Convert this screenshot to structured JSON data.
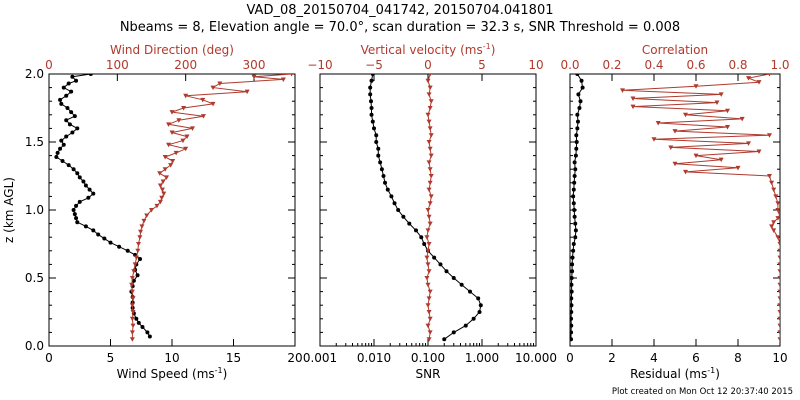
{
  "figure": {
    "title": "VAD_08_20150704_041742, 20150704.041801",
    "subtitle": "Nbeams = 8, Elevation angle = 70.0°, scan duration = 32.3 s, SNR Threshold = 0.008",
    "credit": "Plot created on Mon Oct 12 20:37:40 2015",
    "colors": {
      "black_series": "#000000",
      "red_series": "#b03a2e",
      "axis": "#000000"
    }
  },
  "chart_data": [
    {
      "type": "line",
      "panel": "left",
      "ylabel": "z (km AGL)",
      "ylim": [
        0,
        2
      ],
      "yticks": [
        0.0,
        0.5,
        1.0,
        1.5,
        2.0
      ],
      "ytick_labels": [
        "0.0",
        "0.5",
        "1.0",
        "1.5",
        "2.0"
      ],
      "bottom_axis": {
        "label": "Wind Speed (ms",
        "unit_exp": "-1",
        "label_close": ")",
        "range": [
          0,
          20
        ],
        "ticks": [
          0,
          5,
          10,
          15,
          20
        ],
        "tick_labels": [
          "0",
          "5",
          "10",
          "15",
          "20"
        ]
      },
      "top_axis": {
        "label": "Wind Direction (deg)",
        "unit_exp": "",
        "label_close": "",
        "range": [
          0,
          360
        ],
        "ticks": [
          0,
          100,
          200,
          300
        ],
        "tick_labels": [
          "0",
          "100",
          "200",
          "300"
        ]
      },
      "series": [
        {
          "axis": "bottom",
          "color": "#000000",
          "marker": "dot",
          "z": [
            0.07,
            0.1,
            0.14,
            0.17,
            0.2,
            0.24,
            0.28,
            0.32,
            0.36,
            0.4,
            0.44,
            0.48,
            0.52,
            0.56,
            0.6,
            0.64,
            0.67,
            0.7,
            0.73,
            0.76,
            0.79,
            0.82,
            0.85,
            0.88,
            0.91,
            0.94,
            0.97,
            1.0,
            1.03,
            1.06,
            1.09,
            1.12,
            1.15,
            1.18,
            1.21,
            1.24,
            1.27,
            1.3,
            1.33,
            1.36,
            1.39,
            1.42,
            1.45,
            1.48,
            1.51,
            1.54,
            1.57,
            1.6,
            1.63,
            1.66,
            1.69,
            1.72,
            1.75,
            1.78,
            1.81,
            1.84,
            1.87,
            1.9,
            1.93,
            1.95,
            1.98,
            2.0
          ],
          "values": [
            8.2,
            8.0,
            7.6,
            7.3,
            7.1,
            6.9,
            6.8,
            6.8,
            6.8,
            6.7,
            6.8,
            6.9,
            7.2,
            7.0,
            7.1,
            7.4,
            7.0,
            6.4,
            5.7,
            5.0,
            4.5,
            4.0,
            3.6,
            3.0,
            2.3,
            2.2,
            2.1,
            2.0,
            2.2,
            2.5,
            3.2,
            3.6,
            3.3,
            3.0,
            2.8,
            2.5,
            2.3,
            2.0,
            1.6,
            1.1,
            0.6,
            0.7,
            0.9,
            1.2,
            1.0,
            1.4,
            1.9,
            2.3,
            1.7,
            1.4,
            2.1,
            1.8,
            1.5,
            1.0,
            0.9,
            1.4,
            1.8,
            1.2,
            1.6,
            2.2,
            1.9,
            3.4
          ]
        },
        {
          "axis": "top",
          "color": "#b03a2e",
          "marker": "triangle",
          "z": [
            0.05,
            0.1,
            0.15,
            0.2,
            0.25,
            0.3,
            0.35,
            0.4,
            0.45,
            0.5,
            0.55,
            0.6,
            0.65,
            0.7,
            0.75,
            0.8,
            0.84,
            0.88,
            0.92,
            0.96,
            1.0,
            1.03,
            1.06,
            1.09,
            1.12,
            1.15,
            1.18,
            1.21,
            1.24,
            1.27,
            1.3,
            1.33,
            1.36,
            1.39,
            1.42,
            1.45,
            1.48,
            1.51,
            1.54,
            1.57,
            1.6,
            1.63,
            1.66,
            1.69,
            1.72,
            1.75,
            1.78,
            1.81,
            1.84,
            1.87,
            1.9,
            1.93,
            1.96,
            1.98,
            2.0
          ],
          "values": [
            122,
            122,
            123,
            122,
            123,
            122,
            123,
            122,
            121,
            122,
            124,
            126,
            128,
            130,
            131,
            133,
            134,
            136,
            139,
            143,
            150,
            158,
            163,
            165,
            168,
            166,
            163,
            167,
            172,
            162,
            170,
            178,
            181,
            170,
            186,
            200,
            175,
            196,
            202,
            180,
            210,
            175,
            190,
            226,
            180,
            197,
            240,
            225,
            200,
            290,
            240,
            250,
            343,
            300,
            355
          ]
        }
      ]
    },
    {
      "type": "line",
      "panel": "middle",
      "ylim": [
        0,
        2
      ],
      "xscale": "log",
      "bottom_axis": {
        "label": "SNR",
        "unit_exp": "",
        "label_close": "",
        "range": [
          0.001,
          10
        ],
        "ticks": [
          0.001,
          0.01,
          0.1,
          1,
          10
        ],
        "tick_labels": [
          "0.001",
          "0.010",
          "0.100",
          "1.000",
          "10.000"
        ]
      },
      "top_axis": {
        "label": "Vertical velocity (ms",
        "unit_exp": "-1",
        "label_close": ")",
        "range": [
          -10,
          10
        ],
        "ticks": [
          -10,
          -5,
          0,
          5,
          10
        ],
        "tick_labels": [
          "−10",
          "−5",
          "0",
          "5",
          "10"
        ]
      },
      "series": [
        {
          "axis": "bottom",
          "color": "#000000",
          "marker": "dot",
          "z": [
            0.05,
            0.1,
            0.15,
            0.2,
            0.25,
            0.3,
            0.35,
            0.4,
            0.45,
            0.5,
            0.55,
            0.6,
            0.65,
            0.7,
            0.75,
            0.8,
            0.85,
            0.9,
            0.95,
            1.0,
            1.05,
            1.1,
            1.15,
            1.2,
            1.25,
            1.3,
            1.35,
            1.4,
            1.45,
            1.5,
            1.55,
            1.6,
            1.65,
            1.7,
            1.75,
            1.8,
            1.85,
            1.9,
            1.95,
            2.0
          ],
          "values": [
            0.2,
            0.3,
            0.5,
            0.7,
            0.9,
            0.95,
            0.85,
            0.6,
            0.42,
            0.3,
            0.22,
            0.17,
            0.13,
            0.1,
            0.085,
            0.075,
            0.06,
            0.045,
            0.035,
            0.028,
            0.024,
            0.021,
            0.018,
            0.016,
            0.015,
            0.014,
            0.013,
            0.012,
            0.012,
            0.011,
            0.011,
            0.01,
            0.0095,
            0.009,
            0.009,
            0.0088,
            0.0085,
            0.0085,
            0.009,
            0.0095
          ]
        },
        {
          "axis": "top",
          "color": "#b03a2e",
          "marker": "triangle",
          "z": [
            0.05,
            0.1,
            0.15,
            0.2,
            0.25,
            0.3,
            0.35,
            0.4,
            0.45,
            0.5,
            0.55,
            0.6,
            0.65,
            0.7,
            0.75,
            0.8,
            0.85,
            0.9,
            0.95,
            1.0,
            1.05,
            1.1,
            1.15,
            1.2,
            1.25,
            1.3,
            1.35,
            1.4,
            1.45,
            1.5,
            1.55,
            1.6,
            1.65,
            1.7,
            1.75,
            1.8,
            1.85,
            1.9,
            1.95,
            2.0
          ],
          "values": [
            0.1,
            0.2,
            0.0,
            0.2,
            0.1,
            0.0,
            0.1,
            0.2,
            0.0,
            -0.1,
            0.1,
            0.0,
            -0.1,
            0.0,
            0.1,
            -0.1,
            0.0,
            0.2,
            0.1,
            0.0,
            0.2,
            0.3,
            0.1,
            0.2,
            0.3,
            0.2,
            0.1,
            0.3,
            0.2,
            0.1,
            0.3,
            0.2,
            0.1,
            0.0,
            0.2,
            0.3,
            0.1,
            0.2,
            0.0,
            0.2
          ]
        }
      ]
    },
    {
      "type": "line",
      "panel": "right",
      "ylim": [
        0,
        2
      ],
      "bottom_axis": {
        "label": "Residual (ms",
        "unit_exp": "-1",
        "label_close": ")",
        "range": [
          0,
          10
        ],
        "ticks": [
          0,
          2,
          4,
          6,
          8,
          10
        ],
        "tick_labels": [
          "0",
          "2",
          "4",
          "6",
          "8",
          "10"
        ]
      },
      "top_axis": {
        "label": "Correlation",
        "unit_exp": "",
        "label_close": "",
        "range": [
          0,
          1
        ],
        "ticks": [
          0.0,
          0.2,
          0.4,
          0.6,
          0.8,
          1.0
        ],
        "tick_labels": [
          "0.0",
          "0.2",
          "0.4",
          "0.6",
          "0.8",
          "1.0"
        ]
      },
      "series": [
        {
          "axis": "bottom",
          "color": "#000000",
          "marker": "dot",
          "z": [
            0.05,
            0.1,
            0.15,
            0.2,
            0.25,
            0.3,
            0.35,
            0.4,
            0.45,
            0.5,
            0.55,
            0.6,
            0.65,
            0.7,
            0.75,
            0.8,
            0.85,
            0.9,
            0.95,
            1.0,
            1.05,
            1.1,
            1.15,
            1.2,
            1.25,
            1.3,
            1.35,
            1.4,
            1.45,
            1.5,
            1.55,
            1.6,
            1.65,
            1.7,
            1.75,
            1.8,
            1.85,
            1.9,
            1.95,
            2.0
          ],
          "values": [
            0.05,
            0.05,
            0.06,
            0.05,
            0.06,
            0.07,
            0.06,
            0.08,
            0.07,
            0.08,
            0.1,
            0.1,
            0.12,
            0.15,
            0.18,
            0.25,
            0.28,
            0.25,
            0.22,
            0.2,
            0.18,
            0.15,
            0.18,
            0.2,
            0.22,
            0.25,
            0.22,
            0.28,
            0.3,
            0.32,
            0.3,
            0.35,
            0.38,
            0.35,
            0.45,
            0.5,
            0.4,
            0.6,
            0.55,
            0.35
          ]
        },
        {
          "axis": "top",
          "color": "#b03a2e",
          "marker": "triangle",
          "z": [
            0.05,
            0.1,
            0.15,
            0.2,
            0.25,
            0.3,
            0.35,
            0.4,
            0.45,
            0.5,
            0.55,
            0.6,
            0.65,
            0.7,
            0.75,
            0.8,
            0.85,
            0.88,
            0.91,
            0.94,
            0.97,
            1.0,
            1.05,
            1.1,
            1.15,
            1.2,
            1.25,
            1.28,
            1.31,
            1.34,
            1.37,
            1.4,
            1.43,
            1.46,
            1.49,
            1.52,
            1.55,
            1.58,
            1.61,
            1.64,
            1.67,
            1.7,
            1.73,
            1.76,
            1.79,
            1.82,
            1.85,
            1.88,
            1.91,
            1.94,
            1.97,
            2.0
          ],
          "values": [
            1.0,
            1.0,
            1.0,
            1.0,
            1.0,
            1.0,
            1.0,
            1.0,
            1.0,
            1.0,
            1.0,
            1.0,
            1.0,
            1.0,
            1.0,
            0.99,
            0.97,
            0.96,
            0.97,
            0.99,
            1.0,
            0.99,
            0.99,
            0.98,
            0.97,
            0.96,
            0.95,
            0.55,
            0.8,
            0.5,
            0.72,
            0.6,
            0.9,
            0.48,
            0.85,
            0.4,
            0.95,
            0.5,
            0.75,
            0.42,
            0.82,
            0.55,
            0.75,
            0.3,
            0.7,
            0.3,
            0.72,
            0.25,
            0.6,
            0.9,
            0.85,
            0.95
          ]
        }
      ]
    }
  ]
}
